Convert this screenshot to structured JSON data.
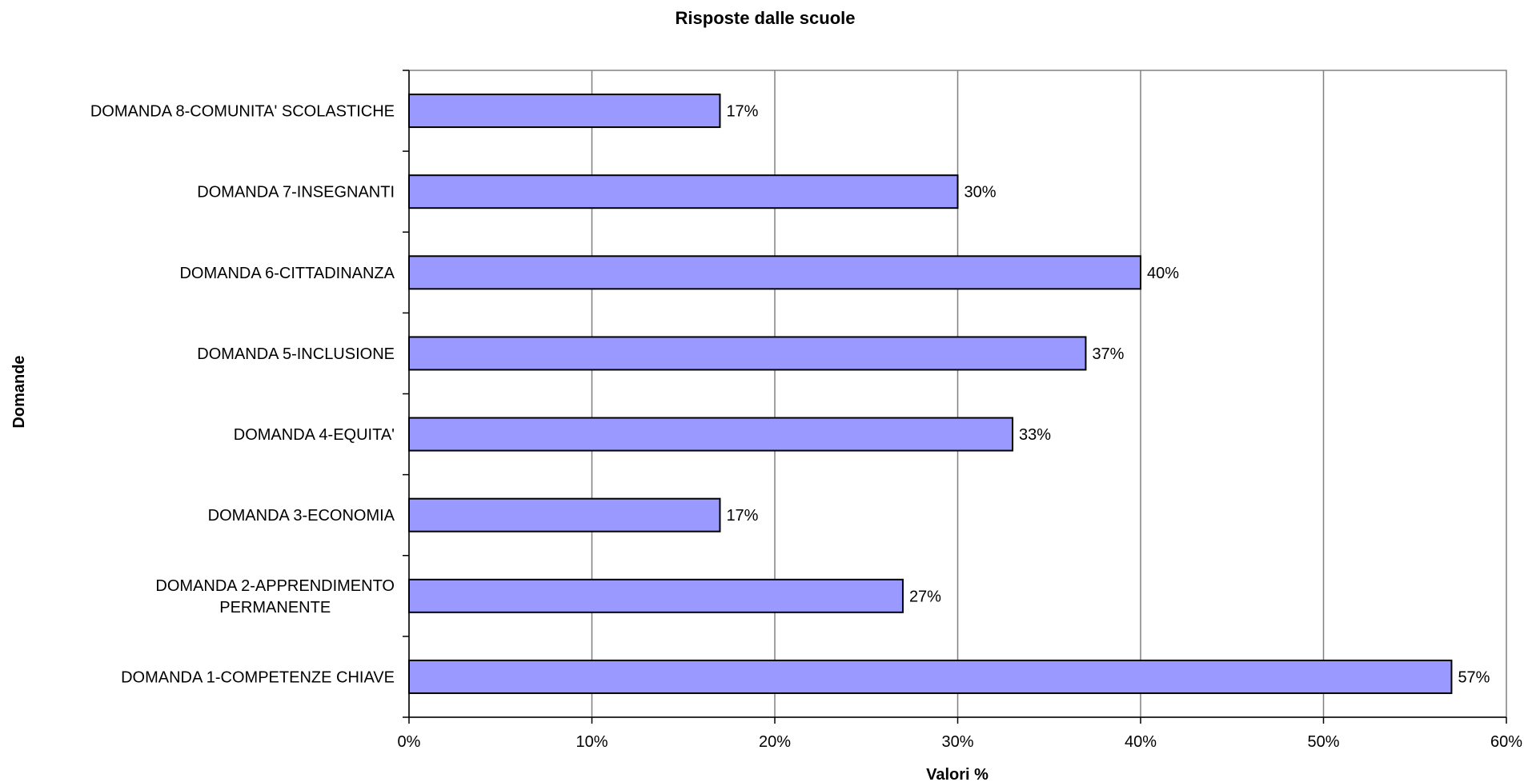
{
  "chart_data": {
    "type": "bar",
    "orientation": "horizontal",
    "title": "Risposte dalle scuole",
    "xlabel": "Valori %",
    "ylabel": "Domande",
    "categories": [
      "DOMANDA 1-COMPETENZE CHIAVE",
      "DOMANDA 2-APPRENDIMENTO\nPERMANENTE",
      "DOMANDA 3-ECONOMIA",
      "DOMANDA 4-EQUITA'",
      "DOMANDA 5-INCLUSIONE",
      "DOMANDA 6-CITTADINANZA",
      "DOMANDA  7-INSEGNANTI",
      "DOMANDA 8-COMUNITA' SCOLASTICHE"
    ],
    "values": [
      57,
      27,
      17,
      33,
      37,
      40,
      30,
      17
    ],
    "data_labels": [
      "57%",
      "27%",
      "17%",
      "33%",
      "37%",
      "40%",
      "30%",
      "17%"
    ],
    "xlim": [
      0,
      60
    ],
    "x_ticks": [
      0,
      10,
      20,
      30,
      40,
      50,
      60
    ],
    "x_tick_labels": [
      "0%",
      "10%",
      "20%",
      "30%",
      "40%",
      "50%",
      "60%"
    ],
    "grid": "vertical",
    "legend": "none",
    "colors": {
      "bar_fill": "#9999FF",
      "bar_stroke": "#000000",
      "grid": "#808080"
    }
  }
}
